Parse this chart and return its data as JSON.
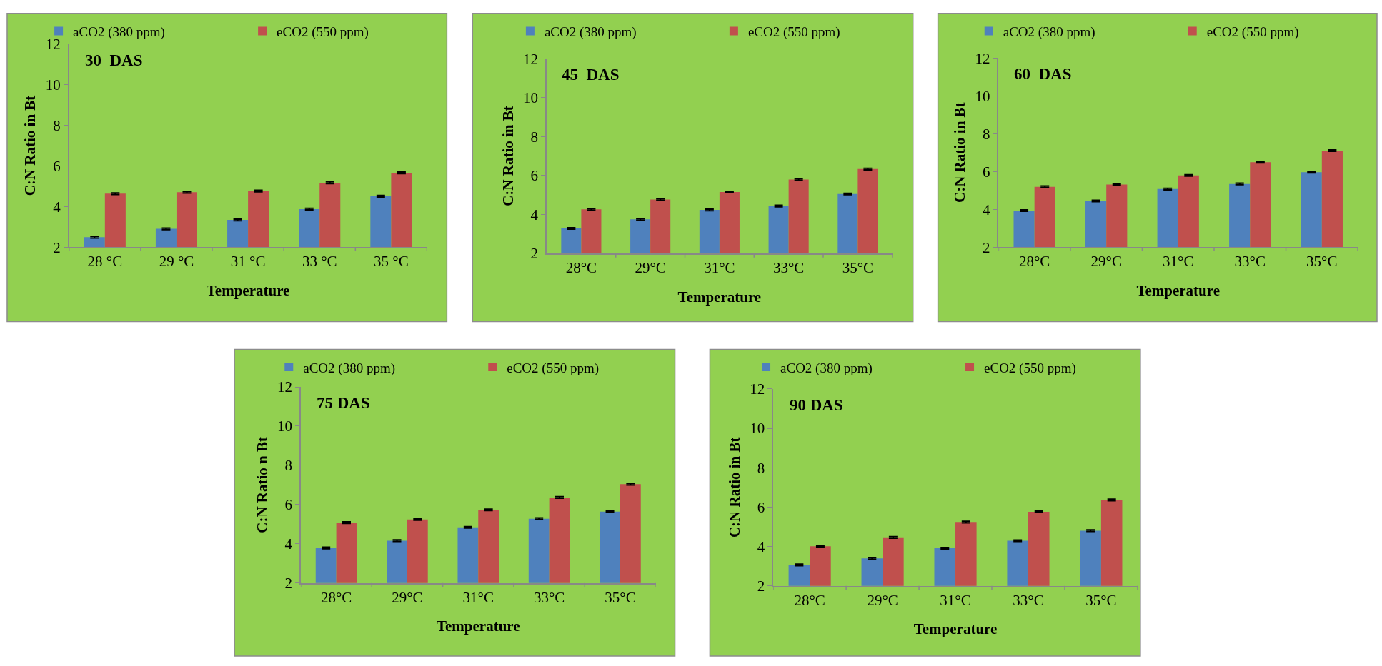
{
  "chart_data": [
    {
      "type": "bar",
      "title": "30  DAS",
      "xlabel": "Temperature",
      "ylabel": "C:N Ratio in Bt",
      "categories": [
        "28 °C",
        "29 °C",
        "31 °C",
        "33 °C",
        "35 °C"
      ],
      "ylim": [
        2,
        12
      ],
      "yticks": [
        2,
        4,
        6,
        8,
        10,
        12
      ],
      "grid": false,
      "legend": "top",
      "series": [
        {
          "name": "aCO2 (380 ppm)",
          "color": "#4f81bd",
          "values": [
            2.49,
            2.9,
            3.34,
            3.87,
            4.51
          ],
          "errors": [
            0.04,
            0.04,
            0.04,
            0.04,
            0.04
          ]
        },
        {
          "name": "eCO2 (550 ppm)",
          "color": "#c0504d",
          "values": [
            4.63,
            4.7,
            4.76,
            5.17,
            5.66
          ],
          "errors": [
            0.04,
            0.04,
            0.04,
            0.04,
            0.04
          ]
        }
      ]
    },
    {
      "type": "bar",
      "title": "45  DAS",
      "xlabel": "Temperature",
      "ylabel": "C:N Ratio in Bt",
      "categories": [
        "28°C",
        "29°C",
        "31°C",
        "33°C",
        "35°C"
      ],
      "ylim": [
        2,
        12
      ],
      "yticks": [
        2,
        4,
        6,
        8,
        10,
        12
      ],
      "grid": false,
      "legend": "top",
      "series": [
        {
          "name": "aCO2 (380 ppm)",
          "color": "#4f81bd",
          "values": [
            3.28,
            3.75,
            4.23,
            4.43,
            5.05
          ],
          "errors": [
            0.04,
            0.04,
            0.04,
            0.04,
            0.04
          ]
        },
        {
          "name": "eCO2 (550 ppm)",
          "color": "#c0504d",
          "values": [
            4.26,
            4.77,
            5.15,
            5.79,
            6.33
          ],
          "errors": [
            0.04,
            0.04,
            0.04,
            0.04,
            0.04
          ]
        }
      ]
    },
    {
      "type": "bar",
      "title": "60  DAS",
      "xlabel": "Temperature",
      "ylabel": "C:N Ratio in Bt",
      "categories": [
        "28°C",
        "29°C",
        "31°C",
        "33°C",
        "35°C"
      ],
      "ylim": [
        2,
        12
      ],
      "yticks": [
        2,
        4,
        6,
        8,
        10,
        12
      ],
      "grid": false,
      "legend": "top",
      "series": [
        {
          "name": "aCO2 (380 ppm)",
          "color": "#4f81bd",
          "values": [
            3.93,
            4.44,
            5.07,
            5.34,
            5.96
          ],
          "errors": [
            0.04,
            0.04,
            0.04,
            0.04,
            0.04
          ]
        },
        {
          "name": "eCO2 (550 ppm)",
          "color": "#c0504d",
          "values": [
            5.19,
            5.31,
            5.79,
            6.49,
            7.1
          ],
          "errors": [
            0.04,
            0.04,
            0.04,
            0.04,
            0.04
          ]
        }
      ]
    },
    {
      "type": "bar",
      "title": "75 DAS",
      "xlabel": "Temperature",
      "ylabel": "C:N Ratio n Bt",
      "categories": [
        "28°C",
        "29°C",
        "31°C",
        "33°C",
        "35°C"
      ],
      "ylim": [
        2,
        12
      ],
      "yticks": [
        2,
        4,
        6,
        8,
        10,
        12
      ],
      "grid": false,
      "legend": "top",
      "series": [
        {
          "name": "aCO2 (380 ppm)",
          "color": "#4f81bd",
          "values": [
            3.79,
            4.16,
            4.84,
            5.28,
            5.64
          ],
          "errors": [
            0.04,
            0.04,
            0.04,
            0.04,
            0.04
          ]
        },
        {
          "name": "eCO2 (550 ppm)",
          "color": "#c0504d",
          "values": [
            5.08,
            5.24,
            5.73,
            6.36,
            7.04
          ],
          "errors": [
            0.04,
            0.04,
            0.04,
            0.04,
            0.04
          ]
        }
      ]
    },
    {
      "type": "bar",
      "title": "90 DAS",
      "xlabel": "Temperature",
      "ylabel": "C:N Ratio in Bt",
      "categories": [
        "28°C",
        "29°C",
        "31°C",
        "33°C",
        "35°C"
      ],
      "ylim": [
        2,
        12
      ],
      "yticks": [
        2,
        4,
        6,
        8,
        10,
        12
      ],
      "grid": false,
      "legend": "top",
      "series": [
        {
          "name": "aCO2 (380 ppm)",
          "color": "#4f81bd",
          "values": [
            3.06,
            3.39,
            3.91,
            4.29,
            4.8
          ],
          "errors": [
            0.04,
            0.04,
            0.04,
            0.04,
            0.04
          ]
        },
        {
          "name": "eCO2 (550 ppm)",
          "color": "#c0504d",
          "values": [
            4.01,
            4.46,
            5.24,
            5.76,
            6.36
          ],
          "errors": [
            0.04,
            0.04,
            0.04,
            0.04,
            0.04
          ]
        }
      ]
    }
  ]
}
